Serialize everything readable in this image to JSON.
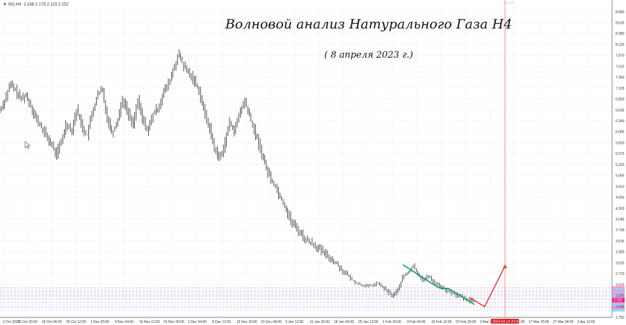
{
  "window": {
    "symbol_label": "NG,H4",
    "ohlc": "2.168 2.179 2.119 2.152",
    "top_arrow": "▼",
    "window_controls": "○ □ ×"
  },
  "annotations": {
    "title": "Волновой анализ Натурального Газа H4",
    "date": "( 8 апреля 2023 г.)"
  },
  "colors": {
    "candle": "#000000",
    "grid": "#d8d8e0",
    "wave_green": "#0b9b76",
    "wave_red": "#e03030",
    "time_marker": "#ff6a6a",
    "level_pink": "#ff90d0",
    "level_cyan": "#9ad0ff",
    "axis_highlight": "#e0208a"
  },
  "chart_data": {
    "type": "candlestick",
    "title": "Волновой анализ Натурального Газа H4",
    "subtitle": "( 8 апреля 2023 г.)",
    "ylim": [
      1.75,
      9.0
    ],
    "y_ticks": [
      "8.890",
      "8.635",
      "8.380",
      "8.125",
      "7.870",
      "7.615",
      "7.360",
      "7.105",
      "6.850",
      "6.595",
      "6.340",
      "6.085",
      "5.830",
      "5.575",
      "5.320",
      "5.065",
      "4.810",
      "4.555",
      "4.300",
      "4.045",
      "3.790",
      "3.535",
      "3.280",
      "3.025",
      "2.770",
      "2.515",
      "2.260",
      "2.005",
      "1.750"
    ],
    "x_ticks": [
      "3 Oct 2022",
      "10 Oct 20:00",
      "18 Oct 04:00",
      "25 Oct 12:00",
      "1 Nov 20:00",
      "9 Nov 04:00",
      "16 Nov 12:00",
      "23 Nov 20:00",
      "1 Dec 04:00",
      "8 Dec 12:00",
      "15 Dec 20:00",
      "23 Dec 04:00",
      "3 Jan 12:00",
      "10 Jan 20:00",
      "18 Jan 04:00",
      "25 Jan 12:00",
      "1 Feb 20:00",
      "9 Feb 04:00",
      "16 Feb 12:00",
      "23 Feb 20:00",
      "3 Mar 04:00",
      "10 Mar 12:00",
      "17 Mar 20:00",
      "27 Mar 04:00",
      "3 Apr 12:00"
    ],
    "x_highlight_label": "2023.04.14 20:00",
    "current_price_label": "2.152",
    "price_path": [
      [
        0,
        6.6
      ],
      [
        2,
        6.85
      ],
      [
        4,
        7.2
      ],
      [
        6,
        7.05
      ],
      [
        8,
        6.85
      ],
      [
        10,
        6.95
      ],
      [
        12,
        6.7
      ],
      [
        14,
        6.4
      ],
      [
        16,
        6.2
      ],
      [
        18,
        6.0
      ],
      [
        20,
        5.8
      ],
      [
        22,
        5.55
      ],
      [
        24,
        5.85
      ],
      [
        26,
        6.3
      ],
      [
        28,
        6.1
      ],
      [
        30,
        6.6
      ],
      [
        32,
        6.25
      ],
      [
        34,
        5.95
      ],
      [
        36,
        6.5
      ],
      [
        38,
        6.9
      ],
      [
        40,
        7.1
      ],
      [
        42,
        6.4
      ],
      [
        44,
        6.05
      ],
      [
        46,
        6.35
      ],
      [
        48,
        6.85
      ],
      [
        50,
        6.55
      ],
      [
        52,
        6.25
      ],
      [
        54,
        6.8
      ],
      [
        56,
        6.35
      ],
      [
        58,
        6.1
      ],
      [
        60,
        6.5
      ],
      [
        62,
        6.65
      ],
      [
        64,
        7.0
      ],
      [
        66,
        7.2
      ],
      [
        68,
        7.55
      ],
      [
        70,
        7.9
      ],
      [
        72,
        7.6
      ],
      [
        74,
        7.45
      ],
      [
        76,
        7.3
      ],
      [
        78,
        7.05
      ],
      [
        80,
        6.55
      ],
      [
        82,
        6.2
      ],
      [
        84,
        5.7
      ],
      [
        86,
        5.45
      ],
      [
        88,
        5.8
      ],
      [
        90,
        6.3
      ],
      [
        92,
        6.1
      ],
      [
        94,
        6.55
      ],
      [
        96,
        6.8
      ],
      [
        98,
        6.4
      ],
      [
        100,
        6.05
      ],
      [
        102,
        5.7
      ],
      [
        104,
        5.3
      ],
      [
        106,
        5.0
      ],
      [
        108,
        4.8
      ],
      [
        110,
        4.55
      ],
      [
        112,
        4.3
      ],
      [
        114,
        4.0
      ],
      [
        116,
        3.85
      ],
      [
        118,
        3.7
      ],
      [
        120,
        3.55
      ],
      [
        122,
        3.5
      ],
      [
        124,
        3.4
      ],
      [
        126,
        3.3
      ],
      [
        128,
        3.2
      ],
      [
        130,
        3.1
      ],
      [
        132,
        3.0
      ],
      [
        134,
        2.85
      ],
      [
        136,
        2.75
      ],
      [
        138,
        2.62
      ],
      [
        140,
        2.55
      ],
      [
        142,
        2.5
      ],
      [
        144,
        2.48
      ],
      [
        146,
        2.5
      ],
      [
        148,
        2.55
      ],
      [
        150,
        2.45
      ],
      [
        152,
        2.35
      ],
      [
        154,
        2.25
      ],
      [
        156,
        2.4
      ],
      [
        158,
        2.7
      ],
      [
        160,
        2.8
      ],
      [
        162,
        2.95
      ],
      [
        164,
        2.75
      ],
      [
        166,
        2.6
      ],
      [
        168,
        2.72
      ],
      [
        170,
        2.58
      ],
      [
        172,
        2.5
      ],
      [
        174,
        2.4
      ],
      [
        176,
        2.35
      ],
      [
        178,
        2.3
      ],
      [
        180,
        2.25
      ],
      [
        182,
        2.2
      ],
      [
        184,
        2.15
      ],
      [
        186,
        2.12
      ]
    ],
    "x_max": 240,
    "wave_green": [
      [
        158,
        2.98
      ],
      [
        172,
        2.44
      ],
      [
        176,
        2.42
      ],
      [
        186,
        2.05
      ]
    ],
    "wave_red": [
      [
        184,
        2.22
      ],
      [
        190,
        2.0
      ],
      [
        198,
        2.95
      ]
    ],
    "time_marker_x": 198,
    "levels": [
      {
        "y": 2.44,
        "color": "#ff90d0"
      },
      {
        "y": 2.4,
        "color": "#9ad0ff"
      },
      {
        "y": 2.36,
        "color": "#ff90d0"
      },
      {
        "y": 2.32,
        "color": "#9ad0ff"
      },
      {
        "y": 2.28,
        "color": "#ff90d0"
      },
      {
        "y": 2.24,
        "color": "#9ad0ff"
      },
      {
        "y": 2.2,
        "color": "#ff90d0"
      },
      {
        "y": 2.16,
        "color": "#9ad0ff"
      },
      {
        "y": 2.1,
        "color": "#ff90d0"
      },
      {
        "y": 2.04,
        "color": "#9ad0ff"
      },
      {
        "y": 1.98,
        "color": "#ff90d0"
      },
      {
        "y": 1.92,
        "color": "#9ad0ff"
      }
    ]
  }
}
